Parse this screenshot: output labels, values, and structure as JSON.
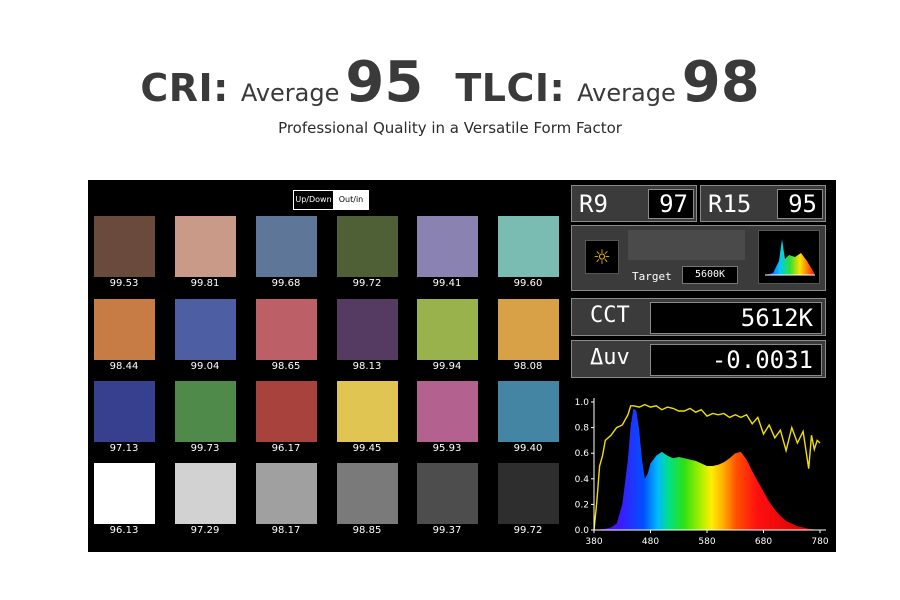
{
  "header": {
    "cri_key": "CRI:",
    "cri_avg_label": "Average",
    "cri_value": "95",
    "tlci_key": "TLCI:",
    "tlci_avg_label": "Average",
    "tlci_value": "98",
    "subtitle": "Professional Quality in a Versatile Form Factor"
  },
  "toggle": {
    "option_a": "Up/Down",
    "option_b": "Out/in",
    "selected": "Out/in"
  },
  "swatches": [
    {
      "value": "99.53",
      "color": "#6a4a3c"
    },
    {
      "value": "99.81",
      "color": "#c99a87"
    },
    {
      "value": "99.68",
      "color": "#5e7697"
    },
    {
      "value": "99.72",
      "color": "#4f5f36"
    },
    {
      "value": "99.41",
      "color": "#8a82b0"
    },
    {
      "value": "99.60",
      "color": "#7bbcb2"
    },
    {
      "value": "98.44",
      "color": "#c77b45"
    },
    {
      "value": "99.04",
      "color": "#4d5ea2"
    },
    {
      "value": "98.65",
      "color": "#bd5f66"
    },
    {
      "value": "98.13",
      "color": "#553b61"
    },
    {
      "value": "99.94",
      "color": "#9ab24c"
    },
    {
      "value": "98.08",
      "color": "#d8a047"
    },
    {
      "value": "97.13",
      "color": "#36408f"
    },
    {
      "value": "99.73",
      "color": "#4f8a4a"
    },
    {
      "value": "96.17",
      "color": "#a8423d"
    },
    {
      "value": "99.45",
      "color": "#e1c553"
    },
    {
      "value": "95.93",
      "color": "#b3628f"
    },
    {
      "value": "99.40",
      "color": "#4385a2"
    },
    {
      "value": "96.13",
      "color": "#ffffff"
    },
    {
      "value": "97.29",
      "color": "#d2d2d2"
    },
    {
      "value": "98.17",
      "color": "#a0a0a0"
    },
    {
      "value": "98.85",
      "color": "#7a7a7a"
    },
    {
      "value": "99.37",
      "color": "#4d4d4d"
    },
    {
      "value": "99.72",
      "color": "#2e2e2e"
    }
  ],
  "readouts": {
    "r9_label": "R9",
    "r9_value": "97",
    "r15_label": "R15",
    "r15_value": "95",
    "target_label": "Target",
    "target_value": "5600K",
    "cct_label": "CCT",
    "cct_value": "5612K",
    "duv_label": "Δuv",
    "duv_value": "-0.0031",
    "sun_icon": "☼"
  },
  "chart_data": {
    "type": "area",
    "x_ticks": [
      "380",
      "480",
      "580",
      "680",
      "780"
    ],
    "y_ticks": [
      "0.0",
      "0.2",
      "0.4",
      "0.6",
      "0.8",
      "1.0"
    ],
    "xlim": [
      380,
      780
    ],
    "ylim": [
      0,
      1.0
    ],
    "series": [
      {
        "kind": "spectrum-fill",
        "x": [
          380,
          400,
          410,
          420,
          430,
          440,
          445,
          450,
          455,
          460,
          465,
          470,
          475,
          480,
          490,
          500,
          510,
          520,
          530,
          540,
          550,
          560,
          570,
          580,
          590,
          600,
          610,
          620,
          630,
          640,
          650,
          660,
          670,
          680,
          690,
          700,
          710,
          720,
          730,
          740,
          750,
          760,
          770,
          780
        ],
        "y": [
          0.0,
          0.01,
          0.02,
          0.05,
          0.2,
          0.55,
          0.82,
          0.95,
          0.93,
          0.78,
          0.55,
          0.4,
          0.44,
          0.52,
          0.58,
          0.61,
          0.58,
          0.56,
          0.57,
          0.56,
          0.55,
          0.54,
          0.52,
          0.5,
          0.5,
          0.51,
          0.53,
          0.56,
          0.6,
          0.61,
          0.55,
          0.46,
          0.38,
          0.3,
          0.22,
          0.16,
          0.11,
          0.07,
          0.05,
          0.03,
          0.02,
          0.01,
          0.005,
          0.0
        ]
      },
      {
        "kind": "line",
        "color": "#f0e000",
        "x": [
          380,
          385,
          390,
          395,
          400,
          410,
          420,
          430,
          440,
          445,
          450,
          460,
          470,
          480,
          490,
          500,
          510,
          520,
          530,
          540,
          550,
          560,
          570,
          580,
          590,
          600,
          610,
          620,
          630,
          640,
          650,
          660,
          670,
          680,
          690,
          700,
          710,
          720,
          730,
          740,
          750,
          760,
          765,
          770,
          775,
          780
        ],
        "y": [
          0.0,
          0.22,
          0.5,
          0.58,
          0.7,
          0.74,
          0.8,
          0.82,
          0.9,
          0.97,
          0.97,
          0.96,
          0.98,
          0.96,
          0.97,
          0.94,
          0.96,
          0.95,
          0.93,
          0.93,
          0.95,
          0.92,
          0.94,
          0.89,
          0.91,
          0.9,
          0.91,
          0.88,
          0.9,
          0.88,
          0.9,
          0.83,
          0.88,
          0.75,
          0.82,
          0.72,
          0.78,
          0.62,
          0.8,
          0.68,
          0.77,
          0.48,
          0.74,
          0.63,
          0.7,
          0.68
        ]
      }
    ]
  }
}
